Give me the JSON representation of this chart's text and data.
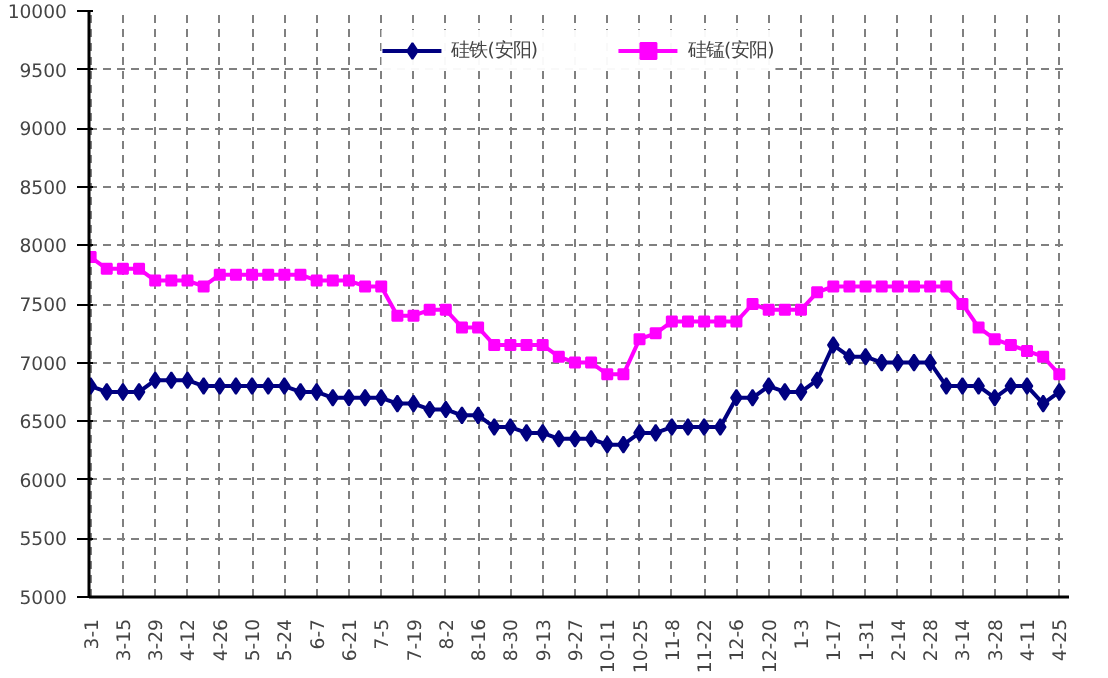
{
  "chart_data": {
    "type": "line",
    "categories": [
      "3-1",
      null,
      "3-15",
      null,
      "3-29",
      null,
      "4-12",
      null,
      "4-26",
      null,
      "5-10",
      null,
      "5-24",
      null,
      "6-7",
      null,
      "6-21",
      null,
      "7-5",
      null,
      "7-19",
      null,
      "8-2",
      null,
      "8-16",
      null,
      "8-30",
      null,
      "9-13",
      null,
      "9-27",
      null,
      "10-11",
      null,
      "10-25",
      null,
      "11-8",
      null,
      "11-22",
      null,
      "12-6",
      null,
      "12-20",
      null,
      "1-3",
      null,
      "1-17",
      null,
      "1-31",
      null,
      "2-14",
      null,
      "2-28",
      null,
      "3-14",
      null,
      "3-28",
      null,
      "4-11",
      null,
      "4-25"
    ],
    "series": [
      {
        "name": "硅铁(安阳)",
        "color": "#000080",
        "marker": "diamond",
        "values": [
          6800,
          6750,
          6750,
          6750,
          6850,
          6850,
          6850,
          6800,
          6800,
          6800,
          6800,
          6800,
          6800,
          6750,
          6750,
          6700,
          6700,
          6700,
          6700,
          6650,
          6650,
          6600,
          6600,
          6550,
          6550,
          6450,
          6450,
          6400,
          6400,
          6350,
          6350,
          6350,
          6300,
          6300,
          6400,
          6400,
          6450,
          6450,
          6450,
          6450,
          6700,
          6700,
          6800,
          6750,
          6750,
          6850,
          7150,
          7050,
          7050,
          7000,
          7000,
          7000,
          7000,
          6800,
          6800,
          6800,
          6700,
          6800,
          6800,
          6650,
          6750
        ]
      },
      {
        "name": "硅锰(安阳)",
        "color": "#ff00ff",
        "marker": "square",
        "values": [
          7900,
          7800,
          7800,
          7800,
          7700,
          7700,
          7700,
          7650,
          7750,
          7750,
          7750,
          7750,
          7750,
          7750,
          7700,
          7700,
          7700,
          7650,
          7650,
          7400,
          7400,
          7450,
          7450,
          7300,
          7300,
          7150,
          7150,
          7150,
          7150,
          7050,
          7000,
          7000,
          6900,
          6900,
          7200,
          7250,
          7350,
          7350,
          7350,
          7350,
          7350,
          7500,
          7450,
          7450,
          7450,
          7600,
          7650,
          7650,
          7650,
          7650,
          7650,
          7650,
          7650,
          7650,
          7500,
          7300,
          7200,
          7150,
          7100,
          7050,
          6900
        ]
      }
    ],
    "ylim": [
      5000,
      10000
    ],
    "yticks": [
      5000,
      5500,
      6000,
      6500,
      7000,
      7500,
      8000,
      8500,
      9000,
      9500,
      10000
    ],
    "grid": true,
    "legend": "top",
    "line_style": "solid"
  }
}
